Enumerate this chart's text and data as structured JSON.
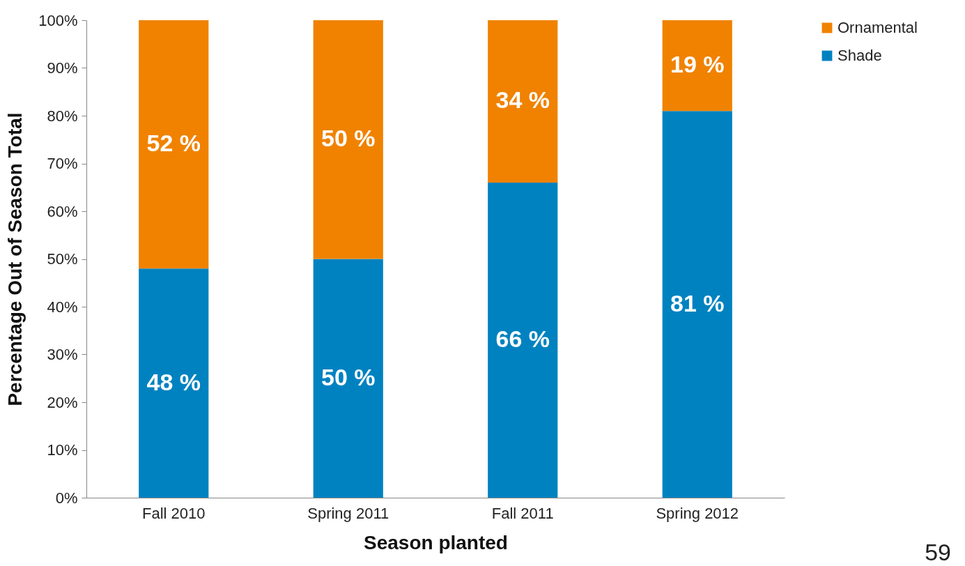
{
  "chart_data": {
    "type": "bar",
    "stacked": true,
    "xlabel": "Season planted",
    "ylabel": "Percentage Out of  Season Total",
    "categories": [
      "Fall 2010",
      "Spring 2011",
      "Fall 2011",
      "Spring 2012"
    ],
    "series": [
      {
        "name": "Shade",
        "color": "#0082c0",
        "values": [
          48,
          50,
          66,
          81
        ],
        "value_labels": [
          "48 %",
          "50 %",
          "66 %",
          "81 %"
        ]
      },
      {
        "name": "Ornamental",
        "color": "#f08200",
        "values": [
          52,
          50,
          34,
          19
        ],
        "value_labels": [
          "52 %",
          "50 %",
          "34 %",
          "19 %"
        ]
      }
    ],
    "ylim": [
      0,
      100
    ],
    "yticks": [
      {
        "value": 0,
        "label": "0%"
      },
      {
        "value": 10,
        "label": "10%"
      },
      {
        "value": 20,
        "label": "20%"
      },
      {
        "value": 30,
        "label": "30%"
      },
      {
        "value": 40,
        "label": "40%"
      },
      {
        "value": 50,
        "label": "50%"
      },
      {
        "value": 60,
        "label": "60%"
      },
      {
        "value": 70,
        "label": "70%"
      },
      {
        "value": 80,
        "label": "80%"
      },
      {
        "value": 90,
        "label": "90%"
      },
      {
        "value": 100,
        "label": "100%"
      }
    ],
    "grid": false,
    "legend": "right",
    "annotations": [
      "59"
    ]
  }
}
